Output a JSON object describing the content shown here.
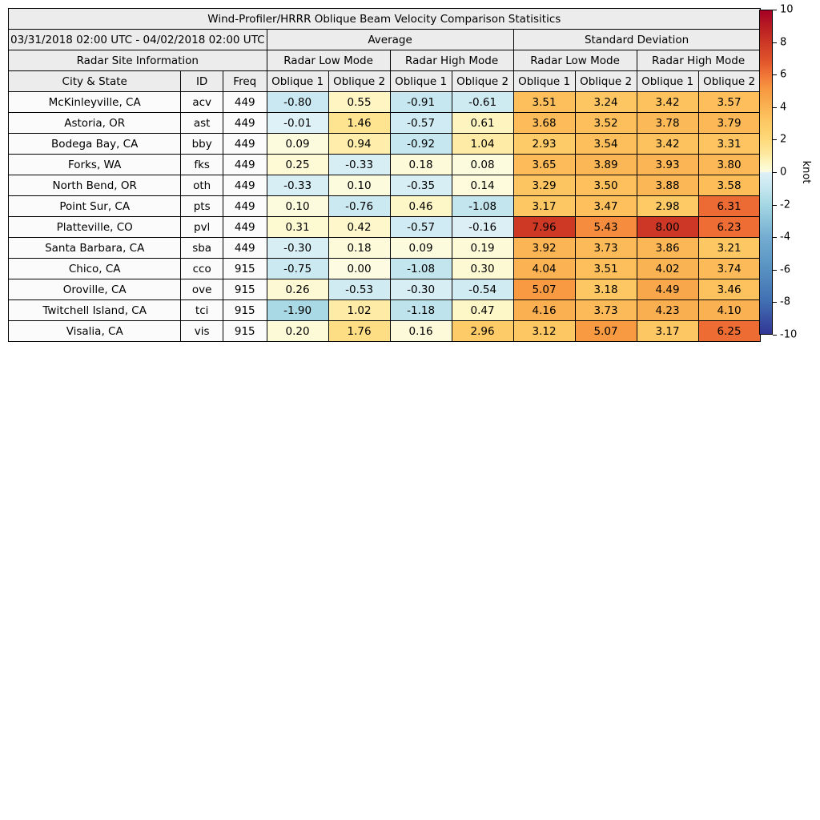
{
  "chart_data": {
    "type": "heatmap_table",
    "title": "Wind-Profiler/HRRR Oblique Beam Velocity Comparison Statisitics",
    "date_range": "03/31/2018 02:00 UTC - 04/02/2018 02:00 UTC",
    "groups": {
      "average": "Average",
      "standard_deviation": "Standard Deviation",
      "site_info": "Radar Site Information",
      "low_mode": "Radar Low Mode",
      "high_mode": "Radar High Mode"
    },
    "columns": [
      "City & State",
      "ID",
      "Freq",
      "Oblique 1",
      "Oblique 2",
      "Oblique 1",
      "Oblique 2",
      "Oblique 1",
      "Oblique 2",
      "Oblique 1",
      "Oblique 2"
    ],
    "rows": [
      {
        "city": "McKinleyville, CA",
        "id": "acv",
        "freq": "449",
        "values": [
          -0.8,
          0.55,
          -0.91,
          -0.61,
          3.51,
          3.24,
          3.42,
          3.57
        ]
      },
      {
        "city": "Astoria, OR",
        "id": "ast",
        "freq": "449",
        "values": [
          -0.01,
          1.46,
          -0.57,
          0.61,
          3.68,
          3.52,
          3.78,
          3.79
        ]
      },
      {
        "city": "Bodega Bay, CA",
        "id": "bby",
        "freq": "449",
        "values": [
          0.09,
          0.94,
          -0.92,
          1.04,
          2.93,
          3.54,
          3.42,
          3.31
        ]
      },
      {
        "city": "Forks, WA",
        "id": "fks",
        "freq": "449",
        "values": [
          0.25,
          -0.33,
          0.18,
          0.08,
          3.65,
          3.89,
          3.93,
          3.8
        ]
      },
      {
        "city": "North Bend, OR",
        "id": "oth",
        "freq": "449",
        "values": [
          -0.33,
          0.1,
          -0.35,
          0.14,
          3.29,
          3.5,
          3.88,
          3.58
        ]
      },
      {
        "city": "Point Sur, CA",
        "id": "pts",
        "freq": "449",
        "values": [
          0.1,
          -0.76,
          0.46,
          -1.08,
          3.17,
          3.47,
          2.98,
          6.31
        ]
      },
      {
        "city": "Platteville, CO",
        "id": "pvl",
        "freq": "449",
        "values": [
          0.31,
          0.42,
          -0.57,
          -0.16,
          7.96,
          5.43,
          8.0,
          6.23
        ]
      },
      {
        "city": "Santa Barbara, CA",
        "id": "sba",
        "freq": "449",
        "values": [
          -0.3,
          0.18,
          0.09,
          0.19,
          3.92,
          3.73,
          3.86,
          3.21
        ]
      },
      {
        "city": "Chico, CA",
        "id": "cco",
        "freq": "915",
        "values": [
          -0.75,
          0.0,
          -1.08,
          0.3,
          4.04,
          3.51,
          4.02,
          3.74
        ]
      },
      {
        "city": "Oroville, CA",
        "id": "ove",
        "freq": "915",
        "values": [
          0.26,
          -0.53,
          -0.3,
          -0.54,
          5.07,
          3.18,
          4.49,
          3.46
        ]
      },
      {
        "city": "Twitchell Island, CA",
        "id": "tci",
        "freq": "915",
        "values": [
          -1.9,
          1.02,
          -1.18,
          0.47,
          4.16,
          3.73,
          4.23,
          4.1
        ]
      },
      {
        "city": "Visalia, CA",
        "id": "vis",
        "freq": "915",
        "values": [
          0.2,
          1.76,
          0.16,
          2.96,
          3.12,
          5.07,
          3.17,
          6.25
        ]
      }
    ],
    "colorbar": {
      "label": "knot",
      "min": -10,
      "max": 10,
      "ticks": [
        10,
        8,
        6,
        4,
        2,
        0,
        -2,
        -4,
        -6,
        -8,
        -10
      ]
    },
    "colormap_stops": [
      [
        -10,
        "#313695"
      ],
      [
        -8,
        "#416fb2"
      ],
      [
        -6,
        "#5791c1"
      ],
      [
        -4,
        "#74add1"
      ],
      [
        -2,
        "#a5d8e4"
      ],
      [
        -1,
        "#c4e6ef"
      ],
      [
        -0.4,
        "#d5edf4"
      ],
      [
        -0.01,
        "#def1f6"
      ],
      [
        0,
        "#fdfce3"
      ],
      [
        0.3,
        "#fdf9d2"
      ],
      [
        0.7,
        "#fef3b9"
      ],
      [
        1.2,
        "#fee79c"
      ],
      [
        1.8,
        "#fedd83"
      ],
      [
        2.5,
        "#fdd26e"
      ],
      [
        3.2,
        "#fdc763"
      ],
      [
        3.6,
        "#fdbd5a"
      ],
      [
        4.1,
        "#fab152"
      ],
      [
        4.6,
        "#f8a449"
      ],
      [
        5.1,
        "#f79942"
      ],
      [
        5.6,
        "#f5863c"
      ],
      [
        6.3,
        "#ec6a33"
      ],
      [
        7,
        "#de512b"
      ],
      [
        8,
        "#cc3825"
      ],
      [
        9,
        "#b81c22"
      ],
      [
        10,
        "#a50026"
      ]
    ],
    "colors": {
      "header_bg": "#ececec",
      "site_cell_bg": "#fbfbfb",
      "border": "#000000"
    }
  }
}
